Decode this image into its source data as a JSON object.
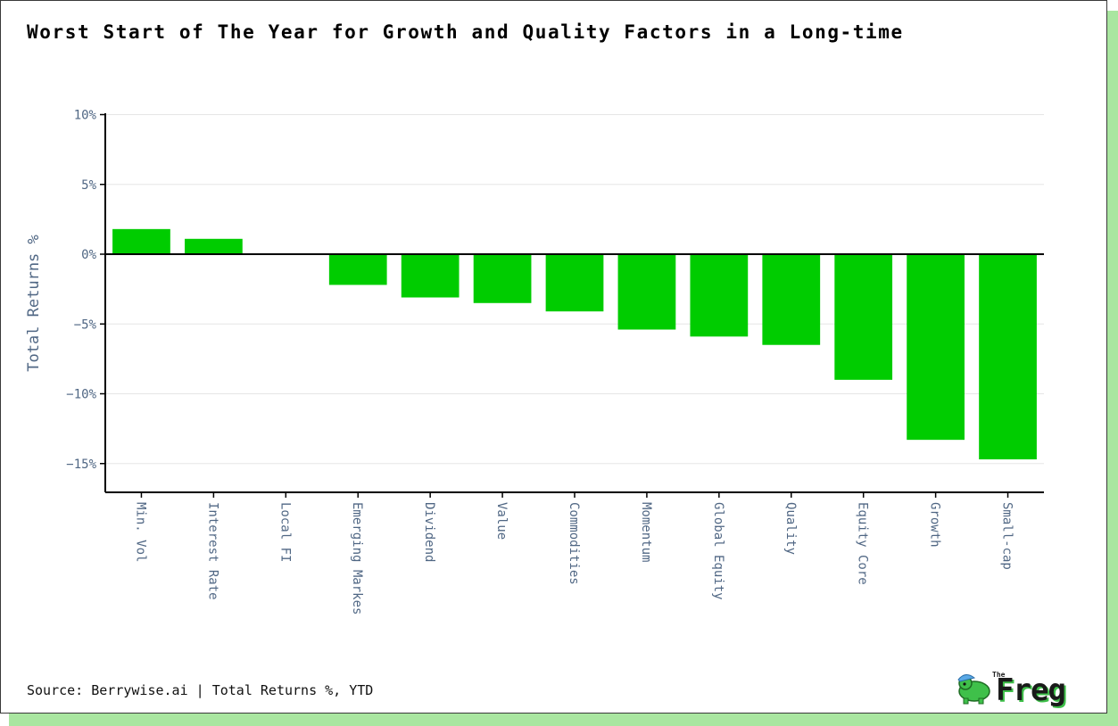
{
  "title": "Worst Start of The Year for Growth and Quality Factors in a Long-time",
  "source": "Source: Berrywise.ai | Total Returns %, YTD",
  "logo": {
    "small": "The",
    "name": "Freg"
  },
  "colors": {
    "bar": "#00cc00",
    "axis": "#000000",
    "grid": "#e6e6e6",
    "tick": "#506784"
  },
  "chart_data": {
    "type": "bar",
    "title": "Worst Start of The Year for Growth and Quality Factors in a Long-time",
    "xlabel": "",
    "ylabel": "Total Returns %",
    "ylim": [
      -17.2,
      10
    ],
    "yticks": [
      10,
      5,
      0,
      -5,
      -10,
      -15
    ],
    "ytick_labels": [
      "10%",
      "5%",
      "0%",
      "−5%",
      "−10%",
      "−15%"
    ],
    "categories": [
      "Min. Vol",
      "Interest Rate",
      "Local FI",
      "Emerging Markes",
      "Dividend",
      "Value",
      "Commodities",
      "Momentum",
      "Global Equity",
      "Quality",
      "Equity Core",
      "Growth",
      "Small-cap"
    ],
    "values": [
      1.8,
      1.1,
      0.05,
      -2.2,
      -3.1,
      -3.5,
      -4.1,
      -5.4,
      -5.9,
      -6.5,
      -9.0,
      -13.3,
      -14.7
    ]
  }
}
